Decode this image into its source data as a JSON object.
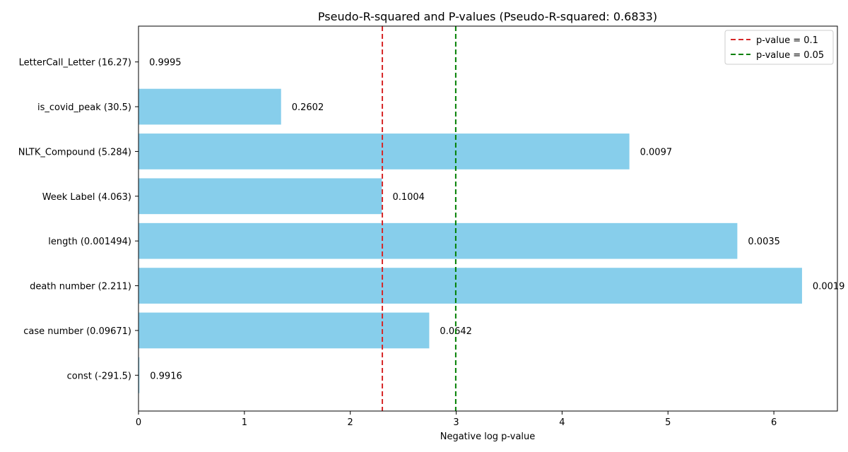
{
  "chart_data": {
    "type": "bar",
    "orientation": "horizontal",
    "title": "Pseudo-R-squared and P-values (Pseudo-R-squared: 0.6833)",
    "xlabel": "Negative log p-value",
    "ylabel": "",
    "xlim": [
      0,
      6.6
    ],
    "xticks": [
      "0",
      "1",
      "2",
      "3",
      "4",
      "5",
      "6"
    ],
    "bar_color": "#87ceeb",
    "categories": [
      "const (-291.5)",
      "case number (0.09671)",
      "death number (2.211)",
      "length (0.001494)",
      "Week Label (4.063)",
      "NLTK_Compound (5.284)",
      "is_covid_peak (30.5)",
      "LetterCall_Letter (16.27)"
    ],
    "values": [
      0.0084,
      2.7456,
      6.2659,
      5.655,
      2.2986,
      4.6356,
      1.3463,
      0.0005
    ],
    "data_labels": [
      "0.9916",
      "0.0642",
      "0.0019",
      "0.0035",
      "0.1004",
      "0.0097",
      "0.2602",
      "0.9995"
    ],
    "reference_lines": [
      {
        "name": "p-value = 0.1",
        "x": 2.3026,
        "color": "#d62728",
        "style": "dashed"
      },
      {
        "name": "p-value = 0.05",
        "x": 2.9957,
        "color": "#008000",
        "style": "dashed"
      }
    ],
    "legend": {
      "position": "top-right"
    },
    "grid": false
  }
}
